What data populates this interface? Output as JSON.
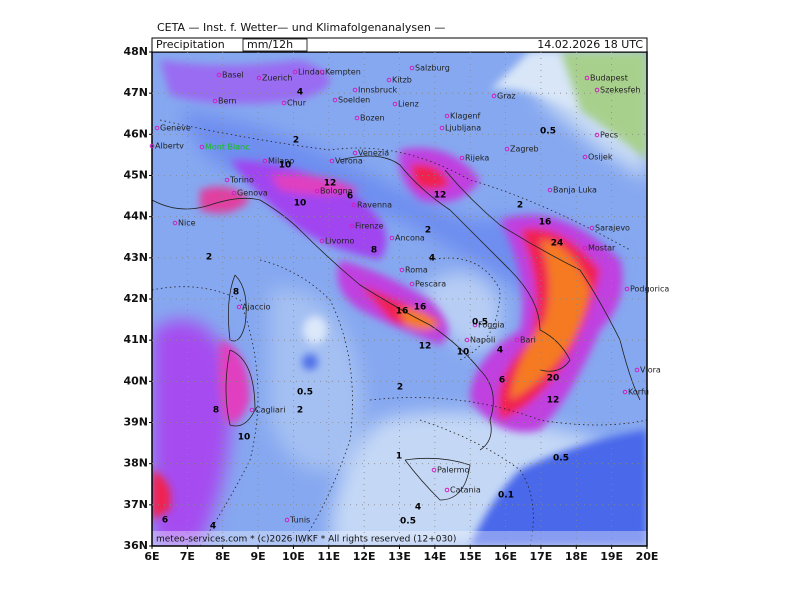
{
  "header": {
    "title": "CETA — Inst. f. Wetter— und Klimafolgenanalysen —",
    "parameter": "Precipitation",
    "unit": "mm/12h",
    "valid_time": "14.02.2026 18 UTC"
  },
  "footer": "meteo-services.com * (c)2026 IWKF * All rights reserved (12+030)",
  "lat_labels": [
    "48N",
    "47N",
    "46N",
    "45N",
    "44N",
    "43N",
    "42N",
    "41N",
    "40N",
    "39N",
    "38N",
    "37N",
    "36N"
  ],
  "lon_labels": [
    "6E",
    "7E",
    "8E",
    "9E",
    "10E",
    "11E",
    "12E",
    "13E",
    "14E",
    "15E",
    "16E",
    "17E",
    "18E",
    "19E",
    "20E"
  ],
  "cities": [
    "Basel",
    "Zuerich",
    "Lindau",
    "Kempten",
    "Salzburg",
    "Kitzb",
    "Innsbruck",
    "Bern",
    "Chur",
    "Soelden",
    "Lienz",
    "Bozen",
    "Graz",
    "Budapest",
    "Szekesfeh",
    "Geneve",
    "Albertv",
    "Mont Blanc",
    "Milano",
    "Verona",
    "Venezia",
    "Klagenf",
    "Ljubljana",
    "Zagreb",
    "Pecs",
    "Osijek",
    "Torino",
    "Genova",
    "Bologna",
    "Ravenna",
    "Rijeka",
    "Banja Luka",
    "Sarajevo",
    "Nice",
    "Firenze",
    "Livorno",
    "Ancona",
    "Mostar",
    "Podgorica",
    "Roma",
    "Pescara",
    "Ajaccio",
    "Foggia",
    "Napoli",
    "Bari",
    "Vlora",
    "Korfu",
    "Cagliari",
    "Palermo",
    "Catania",
    "Tunis"
  ],
  "contour_labels": [
    "2",
    "4",
    "6",
    "10",
    "12",
    "10",
    "8",
    "2",
    "4",
    "8",
    "0.5",
    "2",
    "12",
    "16",
    "16",
    "12",
    "10",
    "4",
    "0.5",
    "16",
    "24",
    "20",
    "12",
    "6",
    "8",
    "10",
    "2",
    "0.5",
    "2",
    "1",
    "0.5",
    "0.1",
    "4",
    "0.5",
    "6",
    "4",
    "2"
  ]
}
